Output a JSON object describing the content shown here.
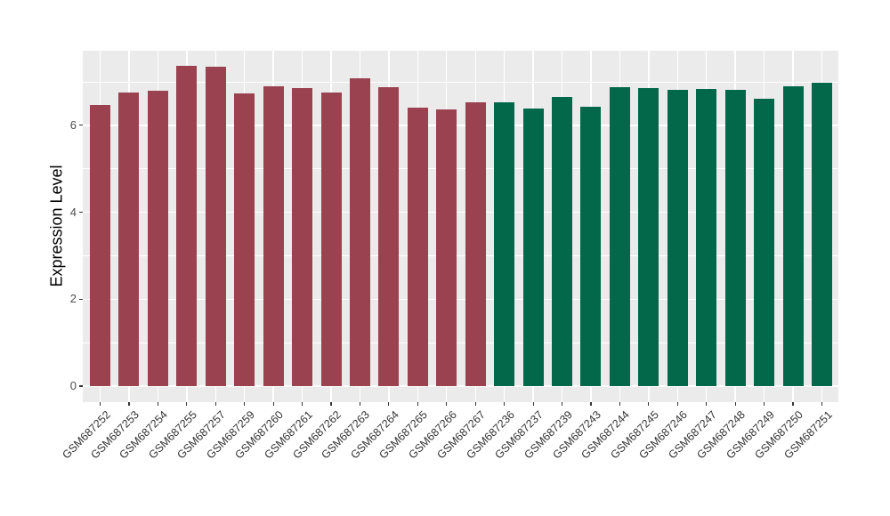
{
  "chart_data": {
    "type": "bar",
    "title": "",
    "xlabel": "",
    "ylabel": "Expression Level",
    "ylim": [
      0,
      7.72
    ],
    "y_major_ticks": [
      0,
      2,
      4,
      6
    ],
    "y_minor_gridlines": [
      1,
      3,
      5,
      7
    ],
    "grid": true,
    "legend": "none",
    "panel_background": "#EBEBEB",
    "gridline_color": "#FFFFFF",
    "axis_text_color": "#333333",
    "groups": [
      {
        "name": "group-1",
        "color": "#9A4250"
      },
      {
        "name": "group-2",
        "color": "#026849"
      }
    ],
    "bars": [
      {
        "label": "GSM687252",
        "value": 6.46,
        "group": 0
      },
      {
        "label": "GSM687253",
        "value": 6.75,
        "group": 0
      },
      {
        "label": "GSM687254",
        "value": 6.8,
        "group": 0
      },
      {
        "label": "GSM687255",
        "value": 7.36,
        "group": 0
      },
      {
        "label": "GSM687257",
        "value": 7.34,
        "group": 0
      },
      {
        "label": "GSM687259",
        "value": 6.74,
        "group": 0
      },
      {
        "label": "GSM687260",
        "value": 6.89,
        "group": 0
      },
      {
        "label": "GSM687261",
        "value": 6.85,
        "group": 0
      },
      {
        "label": "GSM687262",
        "value": 6.75,
        "group": 0
      },
      {
        "label": "GSM687263",
        "value": 7.08,
        "group": 0
      },
      {
        "label": "GSM687264",
        "value": 6.87,
        "group": 0
      },
      {
        "label": "GSM687265",
        "value": 6.41,
        "group": 0
      },
      {
        "label": "GSM687266",
        "value": 6.37,
        "group": 0
      },
      {
        "label": "GSM687267",
        "value": 6.53,
        "group": 0
      },
      {
        "label": "GSM687236",
        "value": 6.52,
        "group": 1
      },
      {
        "label": "GSM687237",
        "value": 6.38,
        "group": 1
      },
      {
        "label": "GSM687239",
        "value": 6.66,
        "group": 1
      },
      {
        "label": "GSM687243",
        "value": 6.42,
        "group": 1
      },
      {
        "label": "GSM687244",
        "value": 6.88,
        "group": 1
      },
      {
        "label": "GSM687245",
        "value": 6.86,
        "group": 1
      },
      {
        "label": "GSM687246",
        "value": 6.81,
        "group": 1
      },
      {
        "label": "GSM687247",
        "value": 6.84,
        "group": 1
      },
      {
        "label": "GSM687248",
        "value": 6.81,
        "group": 1
      },
      {
        "label": "GSM687249",
        "value": 6.61,
        "group": 1
      },
      {
        "label": "GSM687250",
        "value": 6.89,
        "group": 1
      },
      {
        "label": "GSM687251",
        "value": 6.98,
        "group": 1
      }
    ]
  }
}
